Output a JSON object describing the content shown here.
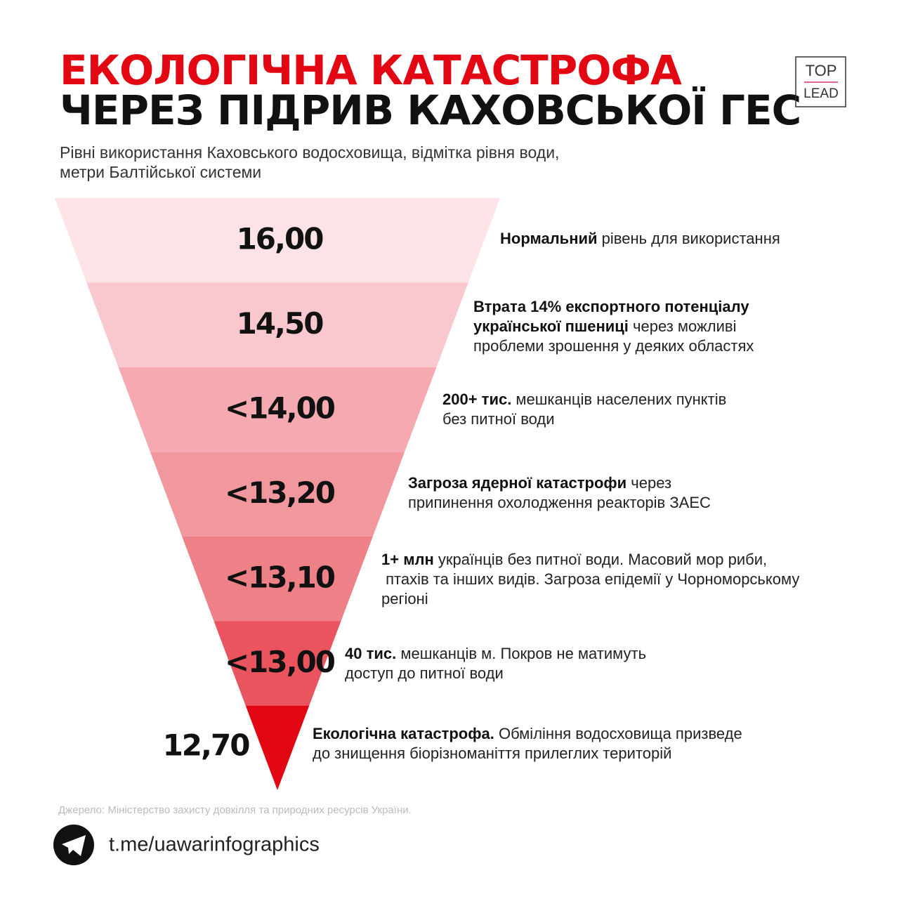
{
  "header": {
    "title_line1": "ЕКОЛОГІЧНА КАТАСТРОФА",
    "title_line2": "ЧЕРЕЗ ПІДРИВ КАХОВСЬКОЇ ГЕС",
    "subtitle": [
      "Рівні використання Каховського водосховища, відмітка рівня води,",
      "метри Балтійської системи"
    ],
    "logo": {
      "top": "TOP",
      "bottom": "LEAD"
    }
  },
  "levels": [
    {
      "label": "16,00",
      "description": [
        [
          {
            "text": "Нормальний",
            "bold": true
          },
          {
            "text": " рівень для використання",
            "bold": false
          }
        ]
      ]
    },
    {
      "label": "14,50",
      "description": [
        [
          {
            "text": "Втрата 14% експортного потенціалу",
            "bold": true
          }
        ],
        [
          {
            "text": "української пшениці",
            "bold": true
          },
          {
            "text": " через можливі",
            "bold": false
          }
        ],
        [
          {
            "text": "проблеми зрошення у деяких областях",
            "bold": false
          }
        ]
      ]
    },
    {
      "label": "<14,00",
      "description": [
        [
          {
            "text": "200+ тис.",
            "bold": true
          },
          {
            "text": " мешканців населених пунктів",
            "bold": false
          }
        ],
        [
          {
            "text": "без питної води",
            "bold": false
          }
        ]
      ]
    },
    {
      "label": "<13,20",
      "description": [
        [
          {
            "text": "Загроза ядерної катастрофи",
            "bold": true
          },
          {
            "text": " через",
            "bold": false
          }
        ],
        [
          {
            "text": "припинення охолодження реакторів ЗАЕС",
            "bold": false
          }
        ]
      ]
    },
    {
      "label": "<13,10",
      "description": [
        [
          {
            "text": "1+ млн",
            "bold": true
          },
          {
            "text": " українців без питної води. Масовий мор риби,",
            "bold": false
          }
        ],
        [
          {
            "text": " птахів та інших видів. Загроза епідемії у Чорноморському",
            "bold": false
          }
        ],
        [
          {
            "text": "регіоні",
            "bold": false
          }
        ]
      ]
    },
    {
      "label": "<13,00",
      "description": [
        [
          {
            "text": "40 тис.",
            "bold": true
          },
          {
            "text": " мешканців м. Покров не матимуть",
            "bold": false
          }
        ],
        [
          {
            "text": "доступ до питної води",
            "bold": false
          }
        ]
      ]
    },
    {
      "label": "12,70",
      "description": [
        [
          {
            "text": "Екологічна катастрофа.",
            "bold": true
          },
          {
            "text": " Обміління водосховища призведе",
            "bold": false
          }
        ],
        [
          {
            "text": "до знищення біорізноманіття прилеглих територій",
            "bold": false
          }
        ]
      ]
    }
  ],
  "footer": {
    "source": "Джерело: Міністерство захисту довкілля та природних ресурсів України.",
    "link": "t.me/uawarinfographics"
  }
}
